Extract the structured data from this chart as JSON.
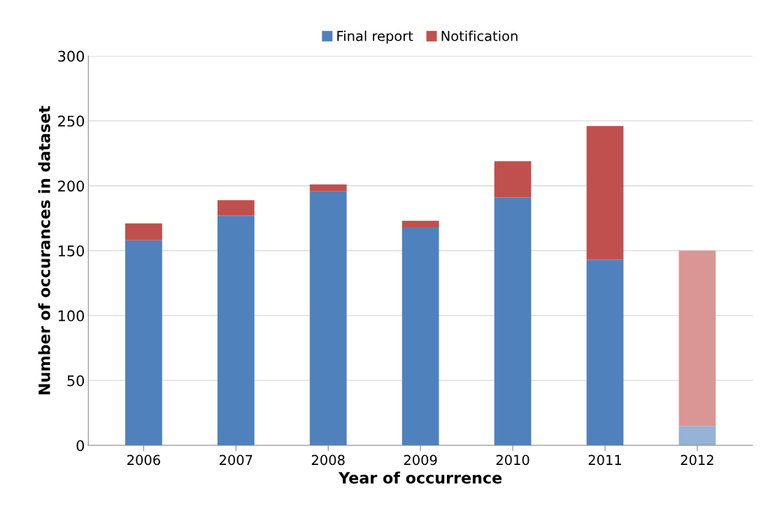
{
  "chart_data": {
    "type": "bar",
    "stacked": true,
    "xlabel": "Year of occurrence",
    "ylabel": "Number of occurances in dataset",
    "categories": [
      "2006",
      "2007",
      "2008",
      "2009",
      "2010",
      "2011",
      "2012"
    ],
    "series": [
      {
        "name": "Final report",
        "color": "#4f81bd",
        "colors": [
          "#4f81bd",
          "#4f81bd",
          "#4f81bd",
          "#4f81bd",
          "#4f81bd",
          "#4f81bd",
          "#95b3d7"
        ],
        "values": [
          158,
          177,
          196,
          168,
          191,
          143,
          15
        ]
      },
      {
        "name": "Notification",
        "color": "#c0504d",
        "colors": [
          "#c0504d",
          "#c0504d",
          "#c0504d",
          "#c0504d",
          "#c0504d",
          "#c0504d",
          "#d99694"
        ],
        "values": [
          13,
          12,
          5,
          5,
          28,
          103,
          135
        ]
      }
    ],
    "ylim": [
      0,
      300
    ],
    "yticks": [
      0,
      50,
      100,
      150,
      200,
      250,
      300
    ],
    "grid": "y",
    "legend": "top"
  }
}
